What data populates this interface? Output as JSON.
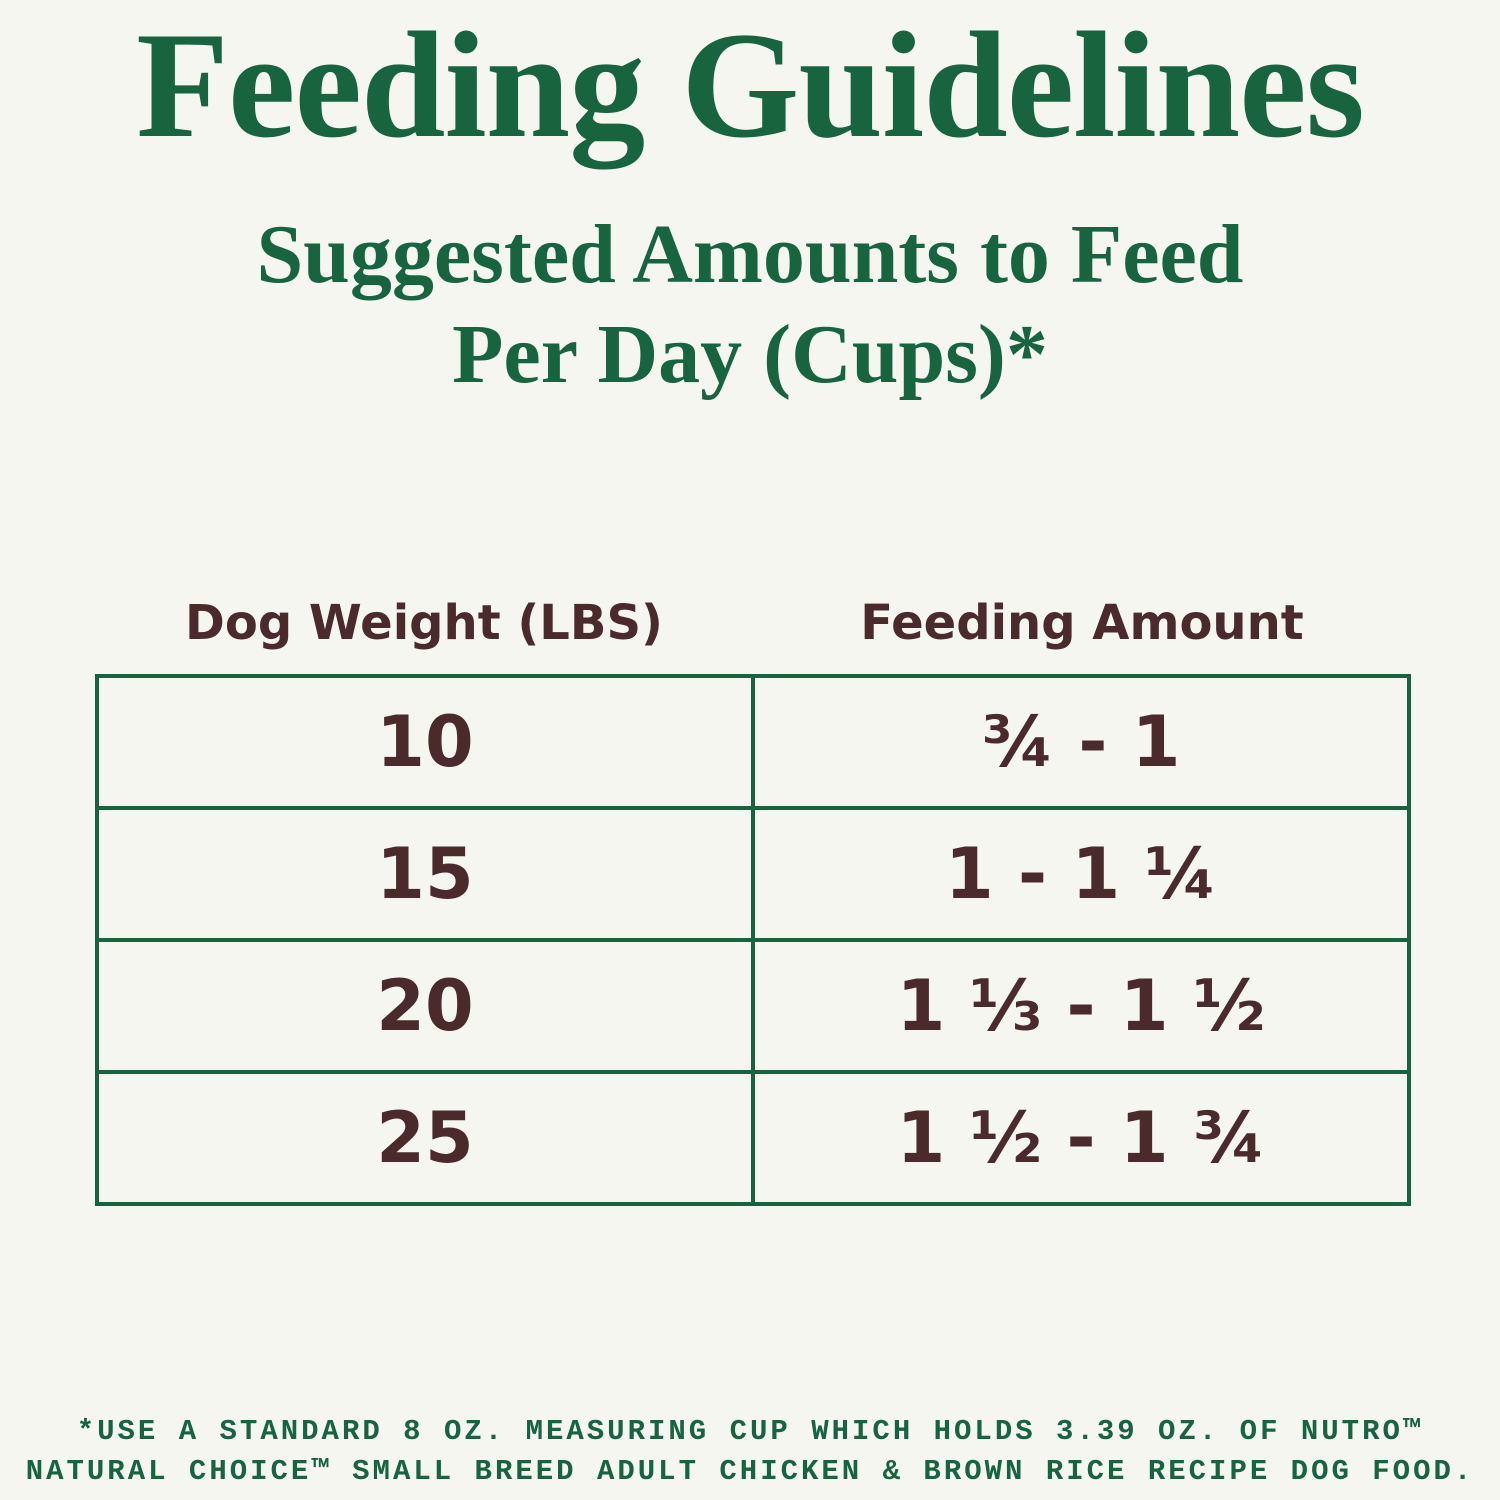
{
  "header": {
    "title": "Feeding Guidelines",
    "subtitle_lines": [
      "Suggested Amounts to Feed",
      "Per Day (Cups)*"
    ]
  },
  "table": {
    "columns": [
      "Dog Weight (LBS)",
      "Feeding Amount"
    ],
    "rows": [
      [
        "10",
        "¾ - 1"
      ],
      [
        "15",
        "1 - 1 ¼"
      ],
      [
        "20",
        "1 ⅓ - 1 ½"
      ],
      [
        "25",
        "1 ½ - 1 ¾"
      ]
    ]
  },
  "footnote": {
    "lines": [
      "*USE A STANDARD 8 OZ. MEASURING CUP WHICH HOLDS 3.39 OZ. OF NUTRO™",
      "NATURAL CHOICE™ SMALL BREED ADULT CHICKEN & BROWN RICE RECIPE DOG FOOD."
    ]
  }
}
